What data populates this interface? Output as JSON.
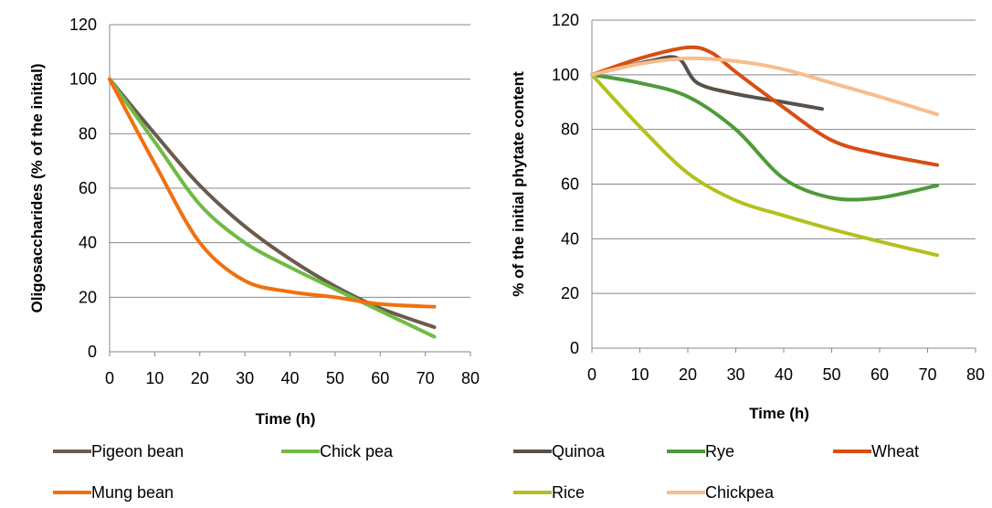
{
  "chart_data": [
    {
      "type": "line",
      "title": "",
      "xlabel": "Time (h)",
      "ylabel": "Oligosaccharides (% of the initial)",
      "xlim": [
        0,
        80
      ],
      "ylim": [
        0,
        120
      ],
      "xticks": [
        "0",
        "10",
        "20",
        "30",
        "40",
        "50",
        "60",
        "70",
        "80"
      ],
      "yticks": [
        "0",
        "20",
        "40",
        "60",
        "80",
        "100",
        "120"
      ],
      "grid": true,
      "legend_position": "bottom",
      "series": [
        {
          "name": "Pigeon bean",
          "color": "#6b5b4d",
          "x": [
            0,
            10,
            20,
            30,
            40,
            50,
            60,
            72
          ],
          "y": [
            100,
            80,
            61,
            46,
            34,
            24,
            16,
            9
          ]
        },
        {
          "name": "Chick pea",
          "color": "#6fbb45",
          "x": [
            0,
            10,
            20,
            30,
            40,
            50,
            60,
            72
          ],
          "y": [
            100,
            77,
            54,
            40,
            31,
            23,
            15,
            5.5
          ]
        },
        {
          "name": "Mung bean",
          "color": "#f07010",
          "x": [
            0,
            10,
            20,
            30,
            40,
            50,
            60,
            72
          ],
          "y": [
            100,
            69,
            40,
            26,
            22,
            20,
            17.5,
            16.5
          ]
        }
      ]
    },
    {
      "type": "line",
      "title": "",
      "xlabel": "Time (h)",
      "ylabel": "% of the initial phytate content",
      "xlim": [
        0,
        80
      ],
      "ylim": [
        0,
        120
      ],
      "xticks": [
        "0",
        "10",
        "20",
        "30",
        "40",
        "50",
        "60",
        "70",
        "80"
      ],
      "yticks": [
        "0",
        "20",
        "40",
        "60",
        "80",
        "100",
        "120"
      ],
      "grid": true,
      "legend_position": "bottom",
      "series": [
        {
          "name": "Quinoa",
          "color": "#595048",
          "x": [
            0,
            12,
            18,
            22,
            30,
            40,
            48
          ],
          "y": [
            100,
            105,
            106,
            97,
            93,
            90,
            87.5
          ]
        },
        {
          "name": "Rye",
          "color": "#4f9a3a",
          "x": [
            0,
            10,
            20,
            30,
            40,
            50,
            60,
            72
          ],
          "y": [
            100,
            97,
            92,
            80,
            62,
            55,
            55,
            59.5
          ]
        },
        {
          "name": "Wheat",
          "color": "#d84e12",
          "x": [
            0,
            10,
            20,
            25,
            30,
            40,
            50,
            60,
            72
          ],
          "y": [
            100,
            106,
            110,
            108,
            101,
            88,
            76,
            71,
            67
          ]
        },
        {
          "name": "Rice",
          "color": "#b2c11e",
          "x": [
            0,
            10,
            20,
            30,
            40,
            50,
            60,
            72
          ],
          "y": [
            100,
            81,
            64,
            54,
            48.5,
            43.5,
            39,
            34
          ]
        },
        {
          "name": "Chickpea",
          "color": "#f7bd8c",
          "x": [
            0,
            10,
            20,
            30,
            40,
            50,
            60,
            72
          ],
          "y": [
            100,
            104,
            106,
            105,
            102,
            97,
            92,
            85.5
          ]
        }
      ]
    }
  ]
}
